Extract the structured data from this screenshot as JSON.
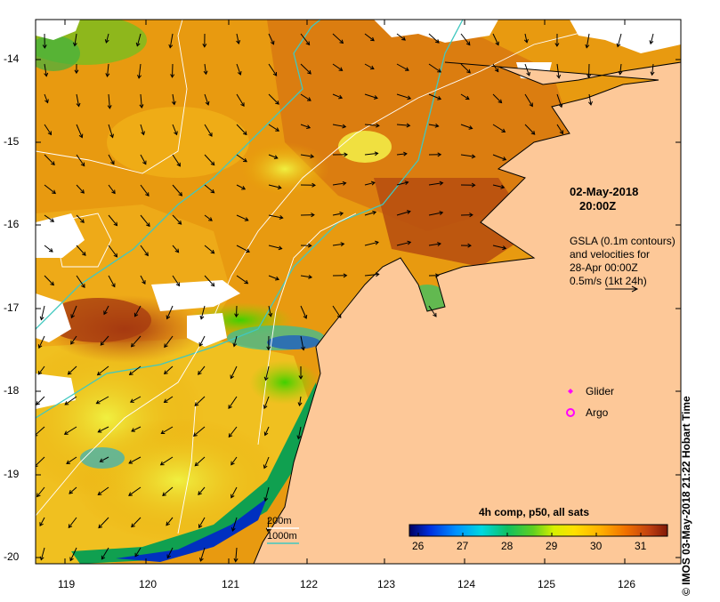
{
  "title": {
    "date": "02-May-2018",
    "time": "20:00Z"
  },
  "gsla_note": {
    "line1": "GSLA (0.1m contours)",
    "line2": "and velocities for",
    "line3": "28-Apr 00:00Z",
    "line4": "0.5m/s (1kt 24h)"
  },
  "legend": {
    "glider": "Glider",
    "argo": "Argo",
    "glider_color": "#ff00ff",
    "argo_color": "#ff00ff"
  },
  "isobaths": {
    "label_200": "200m",
    "label_1000": "1000m",
    "color_200": "#ffffff",
    "color_1000": "#40c8c0"
  },
  "colorbar": {
    "title": "4h comp, p50, all sats",
    "ticks": [
      "26",
      "27",
      "28",
      "29",
      "30",
      "31"
    ],
    "min": 25.8,
    "max": 31.6,
    "colors": [
      "#000080",
      "#0040ff",
      "#00a0ff",
      "#00e0c0",
      "#20c040",
      "#a0e000",
      "#ffff00",
      "#ffc000",
      "#ff8000",
      "#e05000",
      "#a02000"
    ]
  },
  "axes": {
    "x_ticks": [
      "119",
      "120",
      "121",
      "122",
      "123",
      "124",
      "125",
      "126"
    ],
    "y_ticks": [
      "-14",
      "-15",
      "-16",
      "-17",
      "-18",
      "-19",
      "-20"
    ]
  },
  "copyright": "© IMOS 03-May-2018 21:22 Hobart Time",
  "land_color": "#fdc898"
}
